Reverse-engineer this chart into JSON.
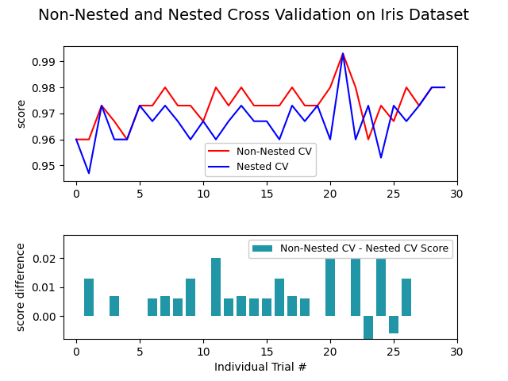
{
  "title": "Non-Nested and Nested Cross Validation on Iris Dataset",
  "title_fontsize": 14,
  "non_nested_scores": [
    0.96,
    0.96,
    0.973,
    0.967,
    0.96,
    0.973,
    0.973,
    0.98,
    0.973,
    0.973,
    0.967,
    0.98,
    0.973,
    0.98,
    0.973,
    0.973,
    0.973,
    0.98,
    0.973,
    0.973,
    0.98,
    0.993,
    0.98,
    0.96,
    0.973,
    0.967,
    0.98,
    0.973,
    0.98,
    0.98
  ],
  "nested_scores": [
    0.96,
    0.947,
    0.973,
    0.96,
    0.96,
    0.973,
    0.967,
    0.973,
    0.967,
    0.96,
    0.967,
    0.96,
    0.967,
    0.973,
    0.967,
    0.967,
    0.96,
    0.973,
    0.967,
    0.973,
    0.96,
    0.993,
    0.96,
    0.973,
    0.953,
    0.973,
    0.967,
    0.973,
    0.98,
    0.98
  ],
  "non_nested_color": "#ff0000",
  "nested_color": "#0000ff",
  "bar_color": "#2196a6",
  "score_ylabel": "score",
  "diff_ylabel": "score difference",
  "xlabel": "Individual Trial #",
  "legend_non_nested": "Non-Nested CV",
  "legend_nested": "Nested CV",
  "bar_legend": "Non-Nested CV - Nested CV Score",
  "score_ylim": [
    0.944,
    0.996
  ],
  "diff_ylim": [
    -0.008,
    0.028
  ],
  "figsize": [
    6.4,
    4.8
  ],
  "dpi": 100
}
